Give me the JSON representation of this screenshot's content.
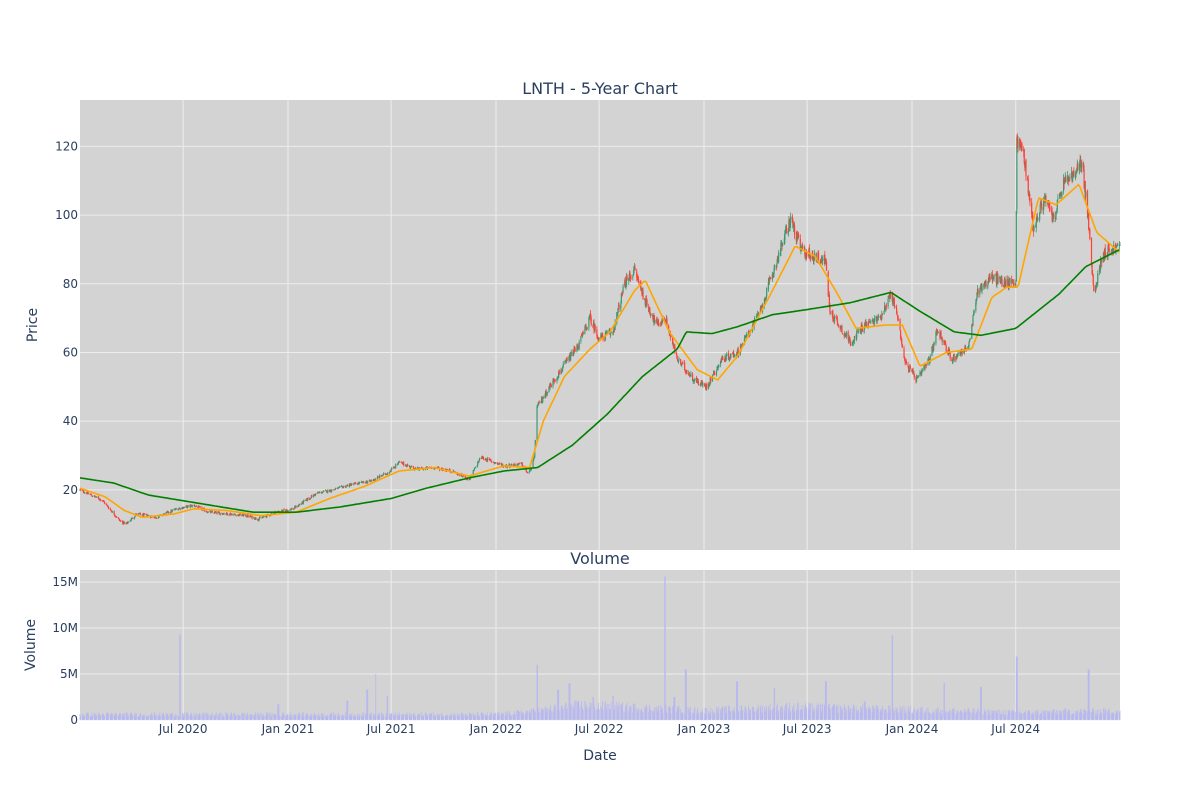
{
  "chart_data": [
    {
      "type": "candlestick",
      "title": "LNTH - 5-Year Chart",
      "xlabel": "",
      "ylabel": "Price",
      "x_range": [
        "2020-01-02",
        "2024-12-31"
      ],
      "ylim": [
        2.5,
        133.5
      ],
      "y_ticks": [
        20,
        40,
        60,
        80,
        100,
        120
      ],
      "grid": true,
      "legend": "none",
      "colors": {
        "up": "#3d9970",
        "down": "#ff4136",
        "ma_short": "#ffa500",
        "ma_long": "#008000",
        "background": "#d3d3d3",
        "grid": "#ececec"
      },
      "price_path": [
        [
          "2020-01-02",
          20
        ],
        [
          "2020-02-10",
          17
        ],
        [
          "2020-03-12",
          11
        ],
        [
          "2020-03-23",
          10
        ],
        [
          "2020-04-10",
          13
        ],
        [
          "2020-05-15",
          12
        ],
        [
          "2020-06-20",
          14.5
        ],
        [
          "2020-07-20",
          15.5
        ],
        [
          "2020-08-15",
          13.5
        ],
        [
          "2020-09-20",
          13
        ],
        [
          "2020-10-20",
          12.5
        ],
        [
          "2020-11-10",
          11.5
        ],
        [
          "2020-12-10",
          13.5
        ],
        [
          "2021-01-10",
          14.5
        ],
        [
          "2021-02-20",
          19
        ],
        [
          "2021-03-20",
          20
        ],
        [
          "2021-04-20",
          21.5
        ],
        [
          "2021-05-25",
          22.5
        ],
        [
          "2021-06-25",
          25
        ],
        [
          "2021-07-15",
          28
        ],
        [
          "2021-08-15",
          26
        ],
        [
          "2021-09-15",
          26.5
        ],
        [
          "2021-10-15",
          25.5
        ],
        [
          "2021-11-15",
          23
        ],
        [
          "2021-12-05",
          29.5
        ],
        [
          "2022-01-15",
          27
        ],
        [
          "2022-02-15",
          27.5
        ],
        [
          "2022-02-27",
          24.5
        ],
        [
          "2022-03-09",
          29
        ],
        [
          "2022-03-14",
          44
        ],
        [
          "2022-04-05",
          50
        ],
        [
          "2022-04-30",
          56
        ],
        [
          "2022-05-25",
          62
        ],
        [
          "2022-06-15",
          70
        ],
        [
          "2022-07-01",
          64
        ],
        [
          "2022-07-25",
          66
        ],
        [
          "2022-08-15",
          80
        ],
        [
          "2022-09-01",
          84
        ],
        [
          "2022-09-20",
          75
        ],
        [
          "2022-10-10",
          68
        ],
        [
          "2022-10-25",
          70
        ],
        [
          "2022-11-15",
          58
        ],
        [
          "2022-12-15",
          52
        ],
        [
          "2023-01-05",
          50
        ],
        [
          "2023-02-01",
          58
        ],
        [
          "2023-03-01",
          60
        ],
        [
          "2023-04-10",
          72
        ],
        [
          "2023-05-15",
          90
        ],
        [
          "2023-06-02",
          99
        ],
        [
          "2023-06-20",
          90
        ],
        [
          "2023-07-10",
          88
        ],
        [
          "2023-08-02",
          87
        ],
        [
          "2023-08-10",
          72
        ],
        [
          "2023-09-15",
          63
        ],
        [
          "2023-10-10",
          68
        ],
        [
          "2023-11-05",
          70
        ],
        [
          "2023-11-25",
          77
        ],
        [
          "2023-12-05",
          72
        ],
        [
          "2023-12-20",
          57
        ],
        [
          "2024-01-10",
          52
        ],
        [
          "2024-02-01",
          58
        ],
        [
          "2024-02-15",
          67
        ],
        [
          "2024-03-10",
          58
        ],
        [
          "2024-04-10",
          62
        ],
        [
          "2024-04-25",
          78
        ],
        [
          "2024-05-20",
          82
        ],
        [
          "2024-06-15",
          80
        ],
        [
          "2024-07-01",
          81
        ],
        [
          "2024-07-03",
          122
        ],
        [
          "2024-07-15",
          118
        ],
        [
          "2024-08-01",
          96
        ],
        [
          "2024-08-20",
          105
        ],
        [
          "2024-09-05",
          99
        ],
        [
          "2024-09-25",
          110
        ],
        [
          "2024-10-15",
          112
        ],
        [
          "2024-10-25",
          116
        ],
        [
          "2024-11-05",
          99
        ],
        [
          "2024-11-15",
          77
        ],
        [
          "2024-12-01",
          89
        ],
        [
          "2024-12-31",
          91
        ]
      ],
      "ma_short": [
        [
          "2020-01-02",
          20.5
        ],
        [
          "2020-02-15",
          18
        ],
        [
          "2020-03-20",
          14
        ],
        [
          "2020-04-20",
          12
        ],
        [
          "2020-06-15",
          13
        ],
        [
          "2020-07-20",
          14.5
        ],
        [
          "2020-09-15",
          14
        ],
        [
          "2020-11-15",
          12.5
        ],
        [
          "2021-01-15",
          13.5
        ],
        [
          "2021-03-15",
          17.5
        ],
        [
          "2021-05-15",
          21
        ],
        [
          "2021-07-15",
          25.5
        ],
        [
          "2021-09-15",
          26.5
        ],
        [
          "2021-11-15",
          24
        ],
        [
          "2022-01-15",
          27
        ],
        [
          "2022-03-01",
          26.5
        ],
        [
          "2022-03-25",
          40
        ],
        [
          "2022-05-01",
          53
        ],
        [
          "2022-06-15",
          61
        ],
        [
          "2022-07-20",
          66
        ],
        [
          "2022-09-01",
          78
        ],
        [
          "2022-09-20",
          81
        ],
        [
          "2022-11-01",
          66
        ],
        [
          "2022-12-20",
          55
        ],
        [
          "2023-01-25",
          52
        ],
        [
          "2023-03-01",
          59
        ],
        [
          "2023-05-01",
          78
        ],
        [
          "2023-06-10",
          91
        ],
        [
          "2023-07-15",
          88
        ],
        [
          "2023-08-20",
          78
        ],
        [
          "2023-09-25",
          67
        ],
        [
          "2023-11-15",
          68
        ],
        [
          "2023-12-15",
          68
        ],
        [
          "2024-01-15",
          56
        ],
        [
          "2024-03-01",
          60
        ],
        [
          "2024-04-15",
          61
        ],
        [
          "2024-05-20",
          76
        ],
        [
          "2024-06-15",
          79
        ],
        [
          "2024-07-05",
          79
        ],
        [
          "2024-08-10",
          105
        ],
        [
          "2024-09-10",
          103
        ],
        [
          "2024-10-20",
          109
        ],
        [
          "2024-11-20",
          95
        ],
        [
          "2024-12-31",
          89
        ]
      ],
      "ma_long": [
        [
          "2020-01-02",
          23.5
        ],
        [
          "2020-03-01",
          22
        ],
        [
          "2020-05-01",
          18.5
        ],
        [
          "2020-08-01",
          16
        ],
        [
          "2020-11-01",
          13.5
        ],
        [
          "2021-01-15",
          13.5
        ],
        [
          "2021-04-01",
          15
        ],
        [
          "2021-07-01",
          17.5
        ],
        [
          "2021-09-01",
          20.5
        ],
        [
          "2021-11-15",
          23.5
        ],
        [
          "2022-01-15",
          25.5
        ],
        [
          "2022-03-15",
          26.5
        ],
        [
          "2022-05-15",
          33
        ],
        [
          "2022-07-15",
          42
        ],
        [
          "2022-09-15",
          53
        ],
        [
          "2022-11-15",
          61
        ],
        [
          "2022-12-01",
          66
        ],
        [
          "2023-01-15",
          65.5
        ],
        [
          "2023-03-01",
          67.5
        ],
        [
          "2023-05-01",
          71
        ],
        [
          "2023-07-01",
          72.5
        ],
        [
          "2023-09-15",
          74.5
        ],
        [
          "2023-11-25",
          77.5
        ],
        [
          "2024-01-15",
          72
        ],
        [
          "2024-03-15",
          66
        ],
        [
          "2024-05-01",
          65
        ],
        [
          "2024-07-01",
          67
        ],
        [
          "2024-09-15",
          77
        ],
        [
          "2024-11-01",
          85
        ],
        [
          "2024-12-31",
          90
        ]
      ]
    },
    {
      "type": "bar",
      "title": "Volume",
      "xlabel": "Date",
      "ylabel": "Volume",
      "x_range": [
        "2020-01-02",
        "2024-12-31"
      ],
      "ylim": [
        0,
        16300000
      ],
      "y_ticks": [
        0,
        5000000,
        10000000,
        15000000
      ],
      "y_tick_labels": [
        "0",
        "5M",
        "10M",
        "15M"
      ],
      "x_ticks": [
        "2020-07-01",
        "2021-01-01",
        "2021-07-01",
        "2022-01-01",
        "2022-07-01",
        "2023-01-01",
        "2023-07-01",
        "2024-01-01",
        "2024-07-01"
      ],
      "x_tick_labels": [
        "Jul 2020",
        "Jan 2021",
        "Jul 2021",
        "Jan 2022",
        "Jul 2022",
        "Jan 2023",
        "Jul 2023",
        "Jan 2024",
        "Jul 2024"
      ],
      "grid": true,
      "colors": {
        "bar": "#b8b8f0",
        "background": "#d3d3d3",
        "grid": "#ececec"
      },
      "baseline_volume": [
        [
          "2020-01-02",
          600000
        ],
        [
          "2021-12-31",
          600000
        ],
        [
          "2022-03-01",
          900000
        ],
        [
          "2022-06-01",
          1600000
        ],
        [
          "2022-12-31",
          1000000
        ],
        [
          "2023-06-01",
          1400000
        ],
        [
          "2023-12-31",
          1100000
        ],
        [
          "2024-06-30",
          800000
        ],
        [
          "2024-12-31",
          1000000
        ]
      ],
      "volume_spikes": [
        [
          "2020-06-26",
          9300000
        ],
        [
          "2020-12-15",
          1700000
        ],
        [
          "2021-04-15",
          2100000
        ],
        [
          "2021-05-20",
          3300000
        ],
        [
          "2021-06-05",
          5000000
        ],
        [
          "2021-06-25",
          2600000
        ],
        [
          "2022-03-14",
          6000000
        ],
        [
          "2022-04-20",
          3300000
        ],
        [
          "2022-05-10",
          4000000
        ],
        [
          "2022-06-20",
          2500000
        ],
        [
          "2022-07-25",
          2600000
        ],
        [
          "2022-10-24",
          15600000
        ],
        [
          "2022-11-10",
          2500000
        ],
        [
          "2022-11-30",
          5500000
        ],
        [
          "2023-02-28",
          4200000
        ],
        [
          "2023-05-05",
          3500000
        ],
        [
          "2023-08-03",
          4200000
        ],
        [
          "2023-10-10",
          2000000
        ],
        [
          "2023-11-27",
          9200000
        ],
        [
          "2024-02-26",
          4000000
        ],
        [
          "2024-05-01",
          3600000
        ],
        [
          "2024-07-03",
          6900000
        ],
        [
          "2024-11-06",
          5500000
        ]
      ]
    }
  ]
}
